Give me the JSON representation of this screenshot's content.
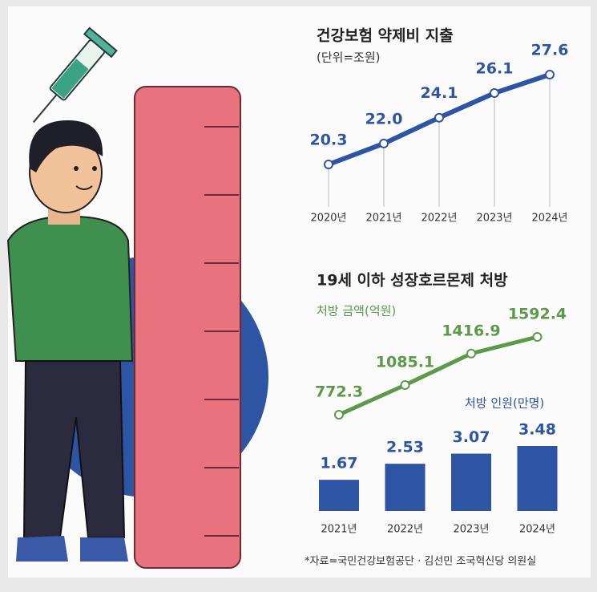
{
  "charts": [
    {
      "type": "line",
      "title": "건강보험 약제비 지출",
      "subtitle": "(단위=조원)",
      "categories": [
        "2020년",
        "2021년",
        "2022년",
        "2023년",
        "2024년"
      ],
      "values": [
        20.3,
        22.0,
        24.1,
        26.1,
        27.6
      ],
      "value_labels": [
        "20.3",
        "22.0",
        "24.1",
        "26.1",
        "27.6"
      ],
      "color": "#2e55a3"
    },
    {
      "type": "combo",
      "title": "19세 이하 성장호르몬제 처방",
      "categories": [
        "2021년",
        "2022년",
        "2023년",
        "2024년"
      ],
      "series": [
        {
          "name": "처방 금액(억원)",
          "type": "line",
          "color": "#5a9a48",
          "values": [
            772.3,
            1085.1,
            1416.9,
            1592.4
          ]
        },
        {
          "name": "처방 인원(만명)",
          "type": "bar",
          "color": "#2e55a3",
          "values": [
            1.67,
            2.53,
            3.07,
            3.48
          ]
        }
      ]
    }
  ],
  "source": "*자료=국민건강보험공단 · 김선민 조국혁신당 의원실"
}
